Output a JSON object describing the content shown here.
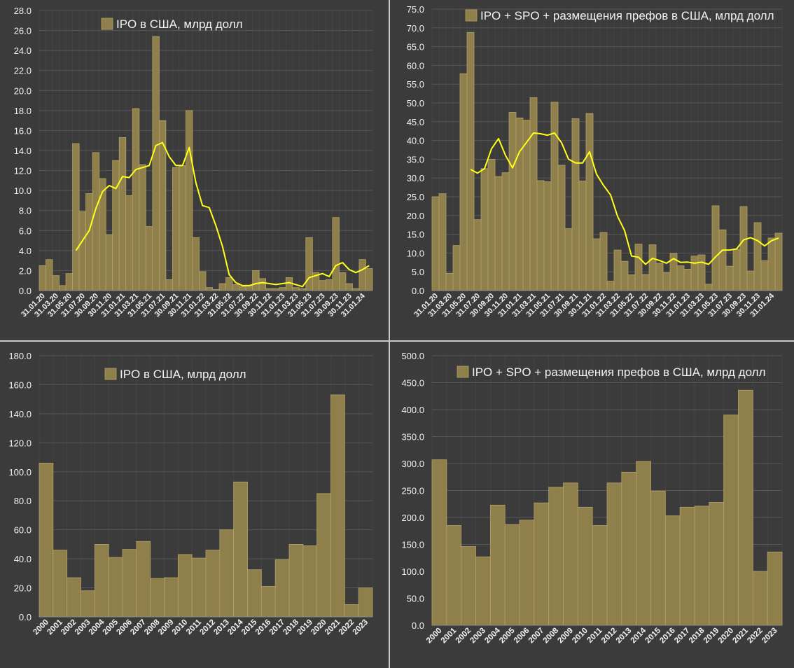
{
  "colors": {
    "panel_bg": "#3b3b3b",
    "bar_fill": "#8f7f4a",
    "bar_stroke": "#b4a268",
    "line": "#ffff1a",
    "grid": "#575757",
    "text": "#f2f2f2"
  },
  "chart_data": [
    {
      "type": "bar",
      "legend": "IPO в США, млрд долл",
      "ylim": [
        0,
        28
      ],
      "ytick_step": 2,
      "x_tick_labels": [
        "31.01.20",
        "31.03.20",
        "31.05.20",
        "31.07.20",
        "30.09.20",
        "30.11.20",
        "31.01.21",
        "31.03.21",
        "31.05.21",
        "31.07.21",
        "30.09.21",
        "30.11.21",
        "31.01.22",
        "31.03.22",
        "31.05.22",
        "31.07.22",
        "30.09.22",
        "30.11.22",
        "31.01.23",
        "31.03.23",
        "31.05.23",
        "31.07.23",
        "30.09.23",
        "30.11.23",
        "31.01.24"
      ],
      "values": [
        2.5,
        3.1,
        1.5,
        0.5,
        1.7,
        14.7,
        7.9,
        9.7,
        13.8,
        11.2,
        5.6,
        13.0,
        15.3,
        9.5,
        18.2,
        12.6,
        6.4,
        25.4,
        17.0,
        1.1,
        12.3,
        12.5,
        18.0,
        5.3,
        1.9,
        0.3,
        0.1,
        0.7,
        1.3,
        0.6,
        0.4,
        0.5,
        2.0,
        1.2,
        0.2,
        0.2,
        0.3,
        1.3,
        0.3,
        0.2,
        5.3,
        1.8,
        1.0,
        1.1,
        7.3,
        1.8,
        0.7,
        0.2,
        3.1,
        2.2
      ],
      "moving_avg_start": 5,
      "moving_avg": [
        4.0,
        5.0,
        6.0,
        8.2,
        9.9,
        10.5,
        10.2,
        11.4,
        11.3,
        12.1,
        12.3,
        12.5,
        14.5,
        14.8,
        13.4,
        12.5,
        12.5,
        14.3,
        10.8,
        8.5,
        8.3,
        6.5,
        4.4,
        1.6,
        0.8,
        0.5,
        0.5,
        0.7,
        0.8,
        0.7,
        0.6,
        0.7,
        0.8,
        0.6,
        0.4,
        1.3,
        1.5,
        1.7,
        1.4,
        2.5,
        2.8,
        2.1,
        1.8,
        2.1,
        2.5
      ]
    },
    {
      "type": "bar",
      "legend": "IPO + SPO + размещения префов в США, млрд долл",
      "ylim": [
        0,
        75
      ],
      "ytick_step": 5,
      "x_tick_labels": [
        "31.01.20",
        "31.03.20",
        "31.05.20",
        "31.07.20",
        "30.09.20",
        "30.11.20",
        "31.01.21",
        "31.03.21",
        "31.05.21",
        "31.07.21",
        "30.09.21",
        "30.11.21",
        "31.01.22",
        "31.03.22",
        "31.05.22",
        "31.07.22",
        "30.09.22",
        "30.11.22",
        "31.01.23",
        "31.03.23",
        "31.05.23",
        "31.07.23",
        "30.09.23",
        "30.11.23",
        "31.01.24"
      ],
      "values": [
        25.0,
        25.8,
        4.6,
        12.0,
        57.8,
        68.8,
        18.9,
        32.5,
        35.0,
        30.4,
        31.4,
        47.5,
        46.0,
        45.4,
        51.4,
        29.3,
        29.0,
        50.2,
        33.4,
        16.5,
        45.8,
        29.2,
        47.2,
        13.8,
        15.5,
        2.5,
        10.8,
        7.8,
        4.2,
        12.4,
        4.3,
        12.2,
        7.3,
        4.8,
        9.9,
        6.6,
        5.7,
        9.2,
        9.5,
        1.7,
        22.6,
        16.2,
        6.5,
        11.0,
        22.4,
        5.2,
        18.1,
        8.0,
        14.0,
        15.3
      ],
      "moving_avg_start": 5,
      "moving_avg": [
        32.3,
        31.3,
        32.5,
        37.8,
        40.5,
        36.0,
        32.7,
        37.0,
        39.5,
        42.0,
        41.8,
        41.4,
        42.0,
        39.4,
        35.0,
        34.0,
        34.0,
        37.0,
        31.0,
        28.0,
        25.5,
        19.8,
        16.0,
        9.2,
        8.9,
        7.0,
        8.6,
        8.0,
        7.3,
        8.5,
        7.5,
        7.6,
        7.3,
        7.6,
        7.0,
        9.0,
        10.8,
        10.8,
        11.1,
        13.5,
        14.1,
        13.3,
        11.9,
        13.3,
        14.0
      ]
    },
    {
      "type": "bar",
      "legend": "IPO в США, млрд долл",
      "ylim": [
        0,
        180
      ],
      "ytick_step": 20,
      "categories": [
        "2000",
        "2001",
        "2002",
        "2003",
        "2004",
        "2005",
        "2006",
        "2007",
        "2008",
        "2009",
        "2010",
        "2011",
        "2012",
        "2013",
        "2014",
        "2015",
        "2016",
        "2017",
        "2018",
        "2019",
        "2020",
        "2021",
        "2022",
        "2023"
      ],
      "values": [
        106.0,
        46.0,
        27.0,
        18.0,
        50.0,
        41.0,
        46.5,
        52.0,
        26.5,
        27.0,
        43.0,
        40.5,
        46.0,
        60.0,
        93.0,
        32.5,
        21.0,
        39.5,
        50.0,
        49.0,
        85.0,
        153.0,
        8.5,
        20.0
      ]
    },
    {
      "type": "bar",
      "legend": "IPO + SPO + размещения префов в США, млрд долл",
      "ylim": [
        0,
        500
      ],
      "ytick_step": 50,
      "categories": [
        "2000",
        "2001",
        "2002",
        "2003",
        "2004",
        "2005",
        "2006",
        "2007",
        "2008",
        "2009",
        "2010",
        "2011",
        "2012",
        "2013",
        "2014",
        "2015",
        "2016",
        "2017",
        "2018",
        "2019",
        "2020",
        "2021",
        "2022",
        "2023"
      ],
      "values": [
        307.0,
        185.0,
        146.0,
        127.0,
        223.0,
        187.0,
        195.0,
        227.0,
        256.0,
        264.0,
        219.0,
        185.0,
        264.0,
        284.0,
        304.0,
        249.0,
        203.0,
        219.0,
        221.0,
        228.0,
        390.0,
        436.0,
        100.0,
        136.0
      ]
    }
  ]
}
